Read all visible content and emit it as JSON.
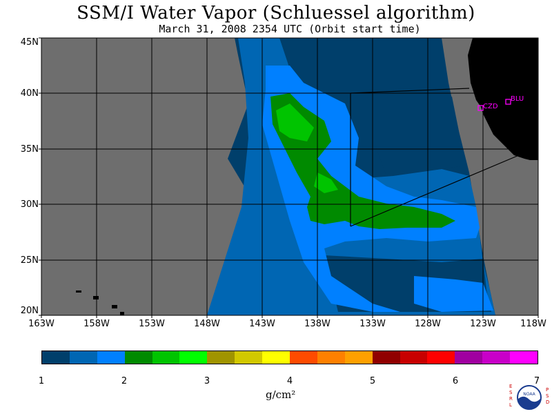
{
  "title": "SSM/I Water Vapor (Schluessel algorithm)",
  "subtitle": "March 31, 2008  2354 UTC  (Orbit start time)",
  "map": {
    "lat_labels": [
      "45N",
      "40N",
      "35N",
      "30N",
      "25N",
      "20N"
    ],
    "lon_labels": [
      "163W",
      "158W",
      "153W",
      "148W",
      "143W",
      "138W",
      "133W",
      "128W",
      "123W",
      "118W"
    ],
    "stations": [
      {
        "code": "CZD"
      },
      {
        "code": "BLU"
      }
    ],
    "colors": {
      "nodata": "#6e6e6e",
      "land": "#000000",
      "station": "#ff00ff"
    }
  },
  "colorbar": {
    "ticks": [
      "1",
      "2",
      "3",
      "4",
      "5",
      "6",
      "7"
    ],
    "unit": "g/cm²",
    "colors": [
      "#003f6b",
      "#0066b3",
      "#0080ff",
      "#008a00",
      "#00c400",
      "#00ff00",
      "#a09400",
      "#d2c800",
      "#ffff00",
      "#ff4b00",
      "#ff8000",
      "#ffa000",
      "#900000",
      "#c80000",
      "#ff0000",
      "#a000a0",
      "#c800c8",
      "#ff00ff"
    ]
  },
  "logo": {
    "left_text": "ESRL",
    "right_text": "PSD",
    "center_text": "NOAA"
  }
}
